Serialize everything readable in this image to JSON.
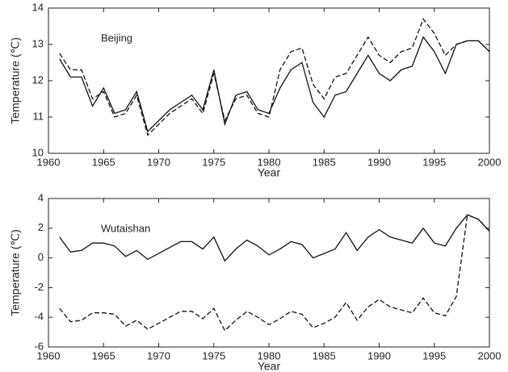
{
  "chart_data": [
    {
      "type": "line",
      "annotation": "Beijing",
      "x_label": "Year",
      "y_label": "Temperature (℃)",
      "x": [
        1961,
        1962,
        1963,
        1964,
        1965,
        1966,
        1967,
        1968,
        1969,
        1970,
        1971,
        1972,
        1973,
        1974,
        1975,
        1976,
        1977,
        1978,
        1979,
        1980,
        1981,
        1982,
        1983,
        1984,
        1985,
        1986,
        1987,
        1988,
        1989,
        1990,
        1991,
        1992,
        1993,
        1994,
        1995,
        1996,
        1997,
        1998,
        1999,
        2000
      ],
      "series": [
        {
          "color": "#111111",
          "linestyle": "solid",
          "values": [
            12.6,
            12.1,
            12.1,
            11.3,
            11.8,
            11.1,
            11.2,
            11.7,
            10.6,
            10.9,
            11.2,
            11.4,
            11.6,
            11.2,
            12.3,
            10.8,
            11.6,
            11.7,
            11.2,
            11.1,
            11.8,
            12.3,
            12.5,
            11.4,
            11.0,
            11.6,
            11.7,
            12.2,
            12.7,
            12.2,
            12.0,
            12.3,
            12.4,
            13.2,
            12.8,
            12.2,
            13.0,
            13.1,
            13.1,
            12.8
          ]
        },
        {
          "color": "#111111",
          "linestyle": "dashed",
          "values": [
            12.75,
            12.3,
            12.3,
            11.5,
            11.7,
            11.0,
            11.1,
            11.6,
            10.5,
            10.8,
            11.1,
            11.3,
            11.5,
            11.1,
            12.2,
            10.9,
            11.5,
            11.6,
            11.1,
            11.0,
            12.3,
            12.8,
            12.9,
            11.9,
            11.5,
            12.1,
            12.2,
            12.7,
            13.2,
            12.7,
            12.5,
            12.8,
            12.9,
            13.7,
            13.3,
            12.7,
            13.0,
            13.1,
            13.1,
            12.8
          ]
        }
      ],
      "xlim": [
        1960,
        2000
      ],
      "xticks": [
        1960,
        1965,
        1970,
        1975,
        1980,
        1985,
        1990,
        1995,
        2000
      ],
      "ylim": [
        10,
        14
      ],
      "yticks": [
        10,
        11,
        12,
        13,
        14
      ]
    },
    {
      "type": "line",
      "annotation": "Wutaishan",
      "x_label": "Year",
      "y_label": "Temperature (℃)",
      "x": [
        1961,
        1962,
        1963,
        1964,
        1965,
        1966,
        1967,
        1968,
        1969,
        1970,
        1971,
        1972,
        1973,
        1974,
        1975,
        1976,
        1977,
        1978,
        1979,
        1980,
        1981,
        1982,
        1983,
        1984,
        1985,
        1986,
        1987,
        1988,
        1989,
        1990,
        1991,
        1992,
        1993,
        1994,
        1995,
        1996,
        1997,
        1998,
        1999,
        2000
      ],
      "series": [
        {
          "color": "#111111",
          "linestyle": "solid",
          "values": [
            1.4,
            0.4,
            0.5,
            1.0,
            1.0,
            0.8,
            0.1,
            0.5,
            -0.1,
            0.3,
            0.7,
            1.1,
            1.1,
            0.6,
            1.4,
            -0.2,
            0.6,
            1.2,
            0.8,
            0.2,
            0.6,
            1.1,
            0.9,
            0.0,
            0.3,
            0.6,
            1.7,
            0.5,
            1.4,
            1.9,
            1.4,
            1.2,
            1.0,
            2.0,
            1.0,
            0.8,
            2.0,
            2.9,
            2.6,
            1.8
          ]
        },
        {
          "color": "#111111",
          "linestyle": "dashed",
          "values": [
            -3.4,
            -4.3,
            -4.2,
            -3.7,
            -3.7,
            -3.8,
            -4.6,
            -4.2,
            -4.8,
            -4.4,
            -4.0,
            -3.6,
            -3.6,
            -4.1,
            -3.4,
            -4.9,
            -4.2,
            -3.6,
            -4.0,
            -4.5,
            -4.1,
            -3.6,
            -3.8,
            -4.7,
            -4.4,
            -4.0,
            -3.0,
            -4.2,
            -3.3,
            -2.8,
            -3.3,
            -3.5,
            -3.7,
            -2.7,
            -3.7,
            -3.9,
            -2.6,
            2.9,
            2.6,
            1.8
          ]
        }
      ],
      "xlim": [
        1960,
        2000
      ],
      "xticks": [
        1960,
        1965,
        1970,
        1975,
        1980,
        1985,
        1990,
        1995,
        2000
      ],
      "ylim": [
        -6,
        4
      ],
      "yticks": [
        -6,
        -4,
        -2,
        0,
        2,
        4
      ]
    }
  ]
}
